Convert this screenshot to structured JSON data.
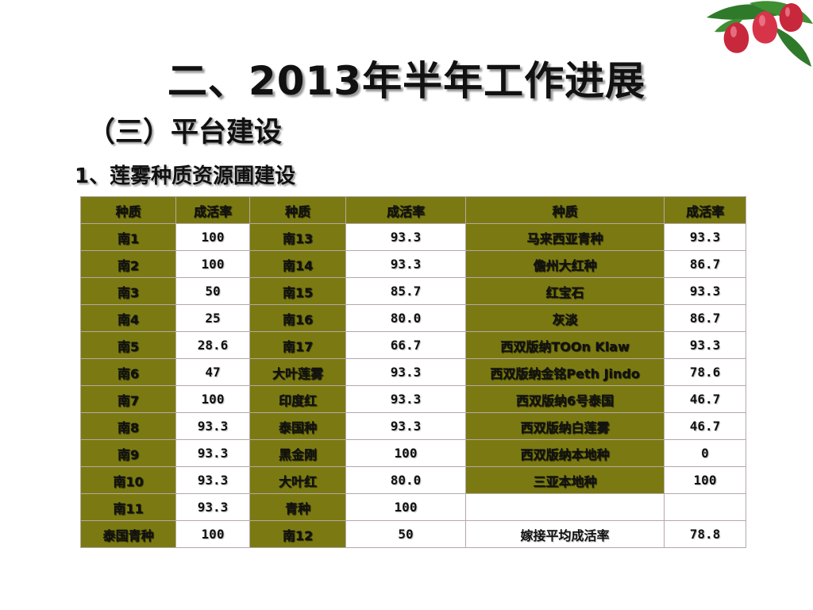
{
  "slide": {
    "title": "二、2013年半年工作进展",
    "subtitle": "（三）平台建设",
    "section": "1、莲雾种质资源圃建设"
  },
  "decoration": {
    "icon": "wax-apple-fruit-icon",
    "colors": {
      "fruit": "#c8283c",
      "leaf": "#2e7a2a"
    }
  },
  "colors": {
    "header_fill": "#7b7a12",
    "cell_fill": "#ffffff",
    "border": "#b5a8a8"
  },
  "table": {
    "headers": [
      "种质",
      "成活率",
      "种质",
      "成活率",
      "种质",
      "成活率"
    ],
    "rows": [
      [
        "南1",
        "100",
        "南13",
        "93.3",
        "马来西亚青种",
        "93.3"
      ],
      [
        "南2",
        "100",
        "南14",
        "93.3",
        "儋州大红种",
        "86.7"
      ],
      [
        "南3",
        "50",
        "南15",
        "85.7",
        "红宝石",
        "93.3"
      ],
      [
        "南4",
        "25",
        "南16",
        "80.0",
        "灰淡",
        "86.7"
      ],
      [
        "南5",
        "28.6",
        "南17",
        "66.7",
        "西双版纳TOOn Klaw",
        "93.3"
      ],
      [
        "南6",
        "47",
        "大叶莲雾",
        "93.3",
        "西双版纳金铭Peth Jindo",
        "78.6"
      ],
      [
        "南7",
        "100",
        "印度红",
        "93.3",
        "西双版纳6号泰国",
        "46.7"
      ],
      [
        "南8",
        "93.3",
        "泰国种",
        "93.3",
        "西双版纳白莲雾",
        "46.7"
      ],
      [
        "南9",
        "93.3",
        "黑金刚",
        "100",
        "西双版纳本地种",
        "0"
      ],
      [
        "南10",
        "93.3",
        "大叶红",
        "80.0",
        "三亚本地种",
        "100"
      ],
      [
        "南11",
        "93.3",
        "青种",
        "100",
        "",
        ""
      ],
      [
        "泰国青种",
        "100",
        "南12",
        "50",
        "嫁接平均成活率",
        "78.8"
      ]
    ]
  }
}
